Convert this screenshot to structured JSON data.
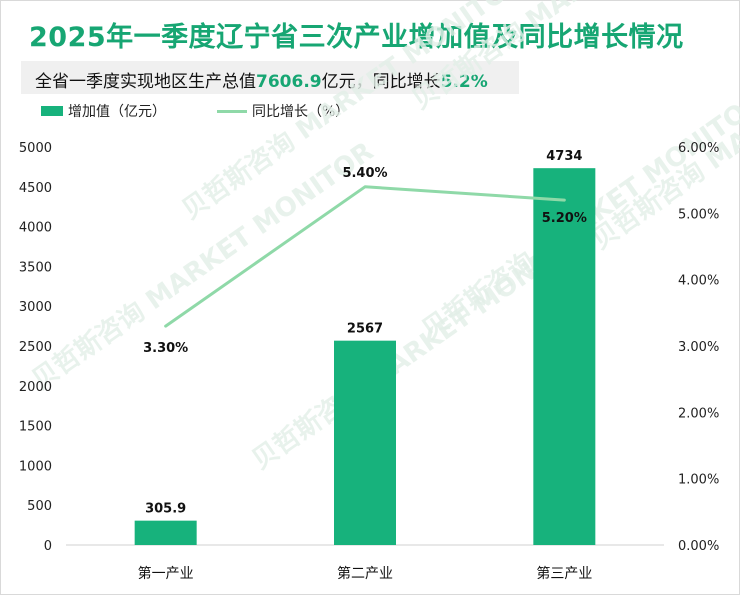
{
  "title": "2025年一季度辽宁省三次产业增加值及同比增长情况",
  "subtitle": {
    "prefix": "全省一季度实现地区生产总值",
    "total_value": "7606.9",
    "middle": "亿元，同比增长",
    "growth": "5.2%"
  },
  "colors": {
    "brand": "#17a673",
    "bar": "#17b27c",
    "line": "#8fd9a8"
  },
  "watermark": "贝哲斯咨询 MARKET MONITOR",
  "chart_data": {
    "type": "bar",
    "categories": [
      "第一产业",
      "第二产业",
      "第三产业"
    ],
    "series": [
      {
        "name": "增加值（亿元）",
        "type": "bar",
        "axis": "left",
        "values": [
          305.9,
          2567,
          4734
        ],
        "labels": [
          "305.9",
          "2567",
          "4734"
        ]
      },
      {
        "name": "同比增长（%）",
        "type": "line",
        "axis": "right",
        "values": [
          3.3,
          5.4,
          5.2
        ],
        "labels": [
          "3.30%",
          "5.40%",
          "5.20%"
        ]
      }
    ],
    "y_left": {
      "min": 0,
      "max": 5000,
      "ticks": [
        "0",
        "500",
        "1000",
        "1500",
        "2000",
        "2500",
        "3000",
        "3500",
        "4000",
        "4500",
        "5000"
      ]
    },
    "y_right": {
      "min": 0,
      "max": 6,
      "ticks": [
        "0.00%",
        "1.00%",
        "2.00%",
        "3.00%",
        "4.00%",
        "5.00%",
        "6.00%"
      ]
    },
    "legend_position": "top-left",
    "grid": false
  }
}
